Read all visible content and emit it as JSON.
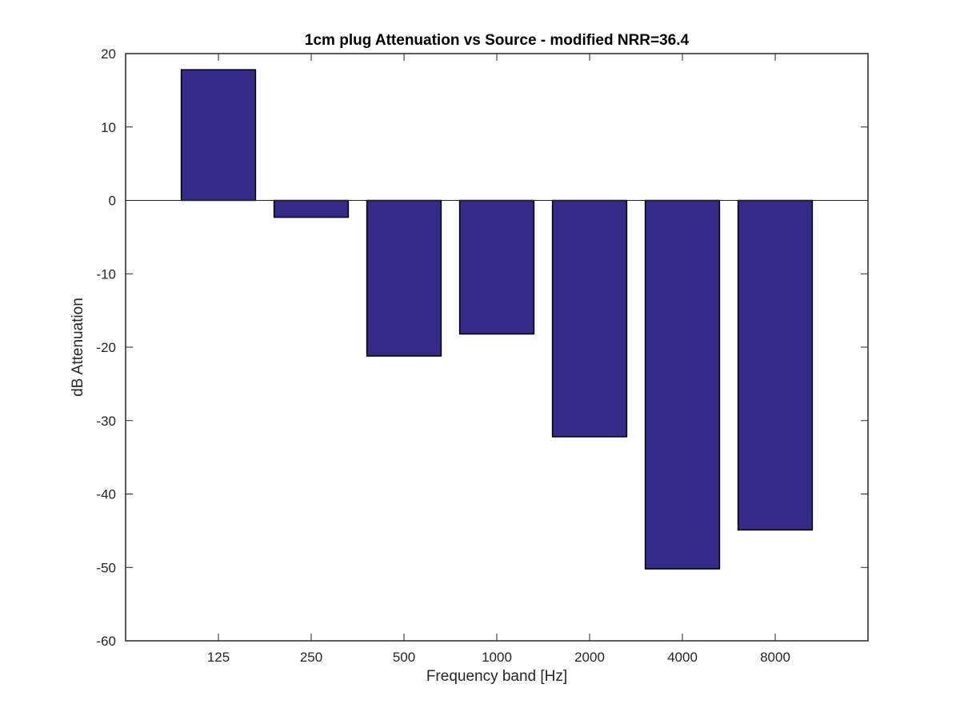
{
  "chart_data": {
    "type": "bar",
    "title": "1cm plug Attenuation vs Source - modified NRR=36.4",
    "xlabel": "Frequency band [Hz]",
    "ylabel": "dB Attenuation",
    "categories": [
      "125",
      "250",
      "500",
      "1000",
      "2000",
      "4000",
      "8000"
    ],
    "values": [
      17.8,
      -2.3,
      -21.2,
      -18.2,
      -32.2,
      -50.2,
      -44.9
    ],
    "ylim": [
      -60,
      20
    ],
    "xlim": [
      0,
      8
    ],
    "yticks": [
      20,
      10,
      0,
      -10,
      -20,
      -30,
      -40,
      -50,
      -60
    ],
    "ytick_labels": [
      "20",
      "10",
      "0",
      "-10",
      "-20",
      "-30",
      "-40",
      "-50",
      "-60"
    ],
    "grid": false,
    "legend": "none",
    "colors": {
      "bar_fill": "#352a87",
      "bar_edge": "#000000",
      "axes": "#262626",
      "baseline": "#262626"
    }
  }
}
